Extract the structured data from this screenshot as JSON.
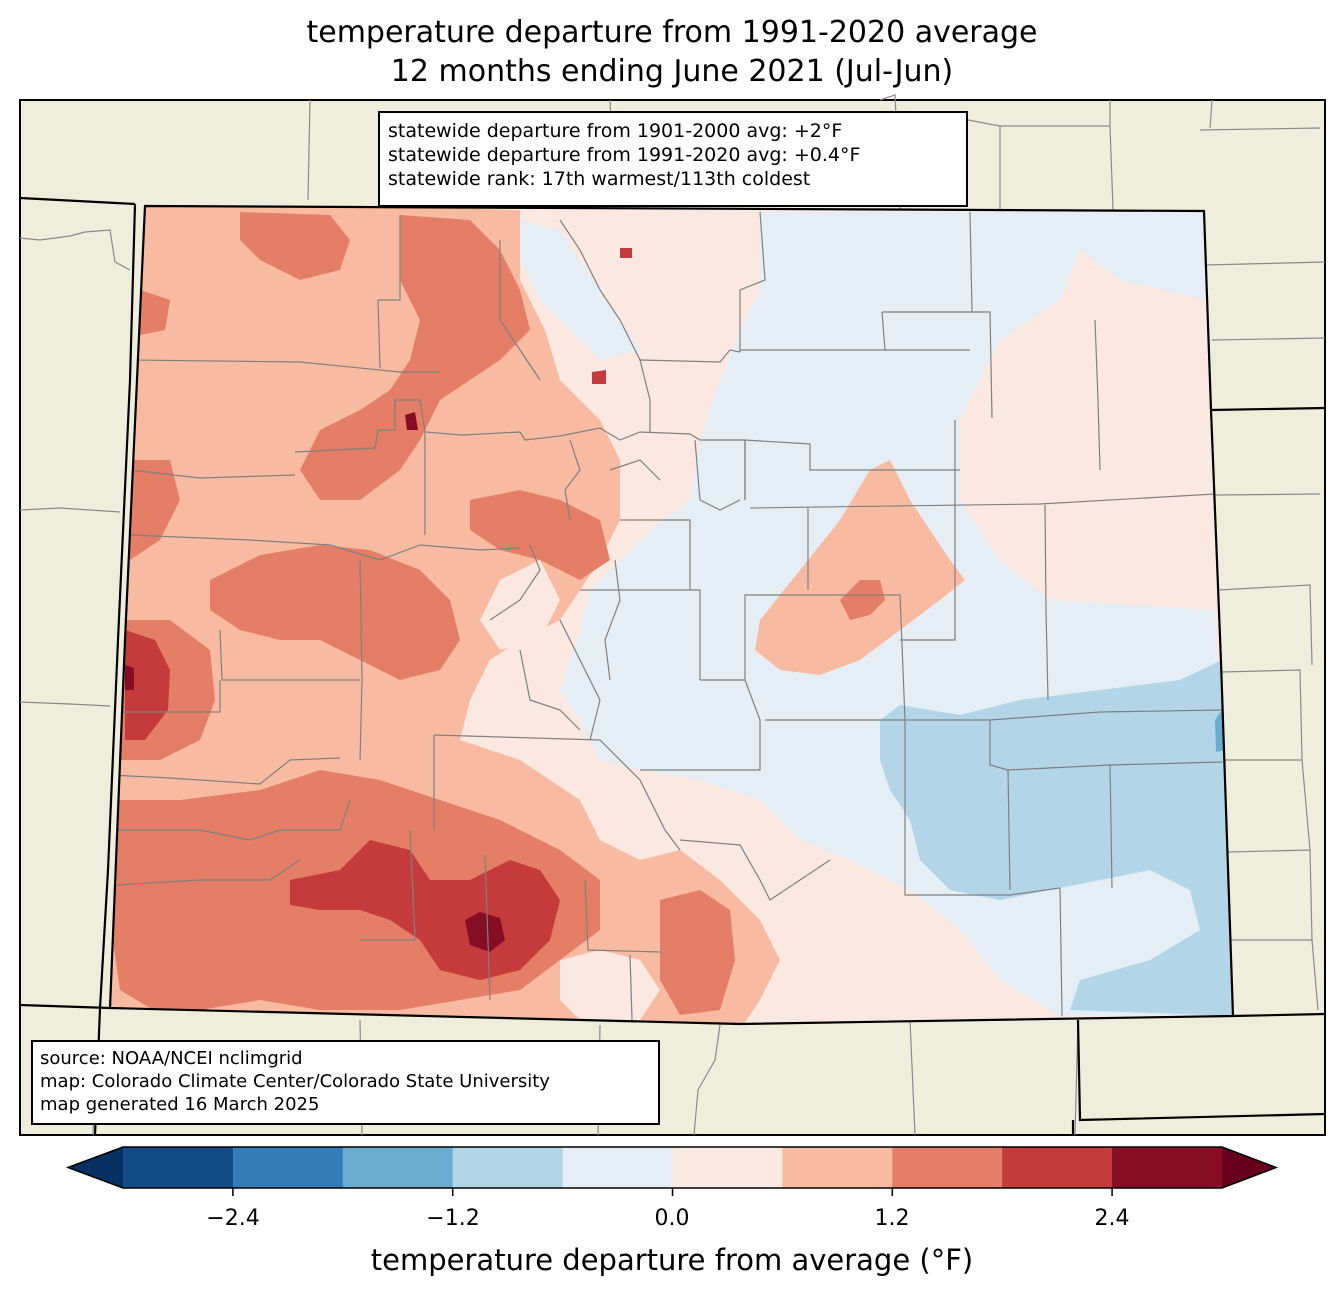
{
  "title": {
    "line1": "temperature departure from 1991-2020 average",
    "line2": "12 months ending June 2021 (Jul-Jun)"
  },
  "stats_box": {
    "line1": "statewide departure from 1901-2000 avg: +2°F",
    "line2": "statewide departure from 1991-2020 avg: +0.4°F",
    "line3": "statewide rank: 17th warmest/113th coldest"
  },
  "source_box": {
    "line1": "source: NOAA/NCEI nclimgrid",
    "line2": "map: Colorado Climate Center/Colorado State University",
    "line3": "map generated 16 March 2025"
  },
  "colorbar": {
    "label": "temperature departure from average (°F)",
    "ticks": [
      "−2.4",
      "−1.2",
      "0.0",
      "1.2",
      "2.4"
    ],
    "bins": [
      {
        "from": -3.0,
        "to": -2.4,
        "color": "#134b87"
      },
      {
        "from": -2.4,
        "to": -1.8,
        "color": "#327cb7"
      },
      {
        "from": -1.8,
        "to": -1.2,
        "color": "#6bacd1"
      },
      {
        "from": -1.2,
        "to": -0.6,
        "color": "#b2d5e7"
      },
      {
        "from": -0.6,
        "to": 0.0,
        "color": "#e5eef5"
      },
      {
        "from": 0.0,
        "to": 0.6,
        "color": "#fbe8e0"
      },
      {
        "from": 0.6,
        "to": 1.2,
        "color": "#f8bba1"
      },
      {
        "from": 1.2,
        "to": 1.8,
        "color": "#e47e66"
      },
      {
        "from": 1.8,
        "to": 2.4,
        "color": "#c53a3a"
      },
      {
        "from": 2.4,
        "to": 3.0,
        "color": "#870d25"
      }
    ],
    "under_color": "#053061",
    "over_color": "#67001f"
  },
  "land_color": "#efeedc"
}
